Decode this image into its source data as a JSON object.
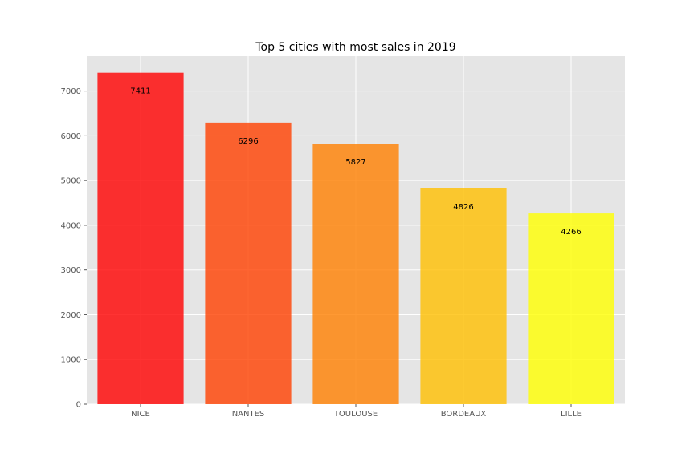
{
  "chart_data": {
    "type": "bar",
    "title": "Top 5 cities with most sales in 2019",
    "xlabel": "",
    "ylabel": "",
    "categories": [
      "NICE",
      "NANTES",
      "TOULOUSE",
      "BORDEAUX",
      "LILLE"
    ],
    "values": [
      7411,
      6296,
      5827,
      4826,
      4266
    ],
    "data_labels": [
      "7411",
      "6296",
      "5827",
      "4826",
      "4266"
    ],
    "bar_colors": [
      "#ff0000",
      "#ff4000",
      "#ff8000",
      "#ffbf00",
      "#ffff00"
    ],
    "bar_opacity": 0.8,
    "yticks": [
      0,
      1000,
      2000,
      3000,
      4000,
      5000,
      6000,
      7000
    ],
    "ytick_labels": [
      "0",
      "1000",
      "2000",
      "3000",
      "4000",
      "5000",
      "6000",
      "7000"
    ],
    "ylim": [
      0,
      7782
    ],
    "grid": true,
    "legend": "none",
    "background_color": "#e5e5e5",
    "grid_color": "#ffffff"
  }
}
